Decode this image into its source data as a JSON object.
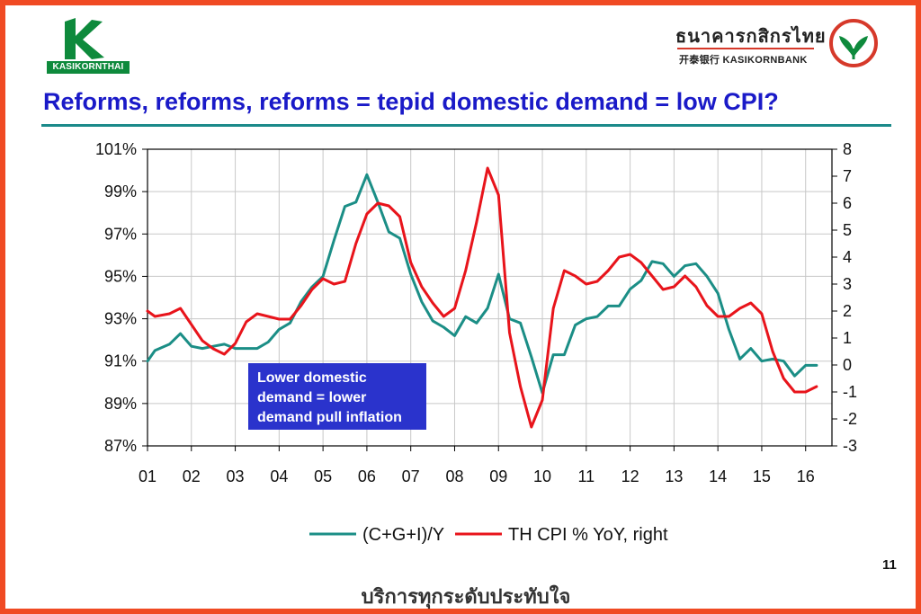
{
  "header": {
    "left_logo_text": "KASIKORNTHAI",
    "right_logo_thai": "ธนาคารกสิกรไทย",
    "right_logo_english": "开泰银行 KASIKORNBANK",
    "title": "Reforms, reforms, reforms = tepid domestic demand = low CPI?"
  },
  "annotation": "Lower domestic demand = lower demand pull inflation",
  "page_number": "11",
  "footer_text": "บริการทุกระดับประทับใจ",
  "colors": {
    "border": "#f04a23",
    "title": "#1a1ac8",
    "series_teal": "#1b8e86",
    "series_red": "#e8141b",
    "annotation_bg": "#2a33cc"
  },
  "chart_data": {
    "type": "line",
    "title": "",
    "x_tick_labels": [
      "01",
      "02",
      "03",
      "04",
      "05",
      "06",
      "07",
      "08",
      "09",
      "10",
      "11",
      "12",
      "13",
      "14",
      "15",
      "16"
    ],
    "xlim": [
      2001,
      2016.6
    ],
    "y_left": {
      "ticks": [
        "87%",
        "89%",
        "91%",
        "93%",
        "95%",
        "97%",
        "99%",
        "101%"
      ],
      "range": [
        87,
        101
      ]
    },
    "y_right": {
      "ticks": [
        "-3",
        "-2",
        "-1",
        "0",
        "1",
        "2",
        "3",
        "4",
        "5",
        "6",
        "7",
        "8"
      ],
      "range": [
        -3,
        8
      ]
    },
    "grid": true,
    "legend_position": "bottom",
    "series": [
      {
        "name": "(C+G+I)/Y",
        "axis": "left",
        "color": "#1b8e86",
        "x": [
          2001.0,
          2001.17,
          2001.5,
          2001.75,
          2002.0,
          2002.25,
          2002.5,
          2002.75,
          2003.0,
          2003.25,
          2003.5,
          2003.75,
          2004.0,
          2004.25,
          2004.5,
          2004.75,
          2005.0,
          2005.25,
          2005.5,
          2005.75,
          2006.0,
          2006.25,
          2006.5,
          2006.75,
          2007.0,
          2007.25,
          2007.5,
          2007.75,
          2008.0,
          2008.25,
          2008.5,
          2008.75,
          2009.0,
          2009.25,
          2009.5,
          2009.75,
          2010.0,
          2010.25,
          2010.5,
          2010.75,
          2011.0,
          2011.25,
          2011.5,
          2011.75,
          2012.0,
          2012.25,
          2012.5,
          2012.75,
          2013.0,
          2013.25,
          2013.5,
          2013.75,
          2014.0,
          2014.25,
          2014.5,
          2014.75,
          2015.0,
          2015.25,
          2015.5,
          2015.75,
          2016.0,
          2016.25
        ],
        "values": [
          91.0,
          91.5,
          91.8,
          92.3,
          91.7,
          91.6,
          91.7,
          91.8,
          91.6,
          91.6,
          91.6,
          91.9,
          92.5,
          92.8,
          93.8,
          94.5,
          95.0,
          96.7,
          98.3,
          98.5,
          99.8,
          98.5,
          97.1,
          96.8,
          95.1,
          93.8,
          92.9,
          92.6,
          92.2,
          93.1,
          92.8,
          93.5,
          95.1,
          93.0,
          92.8,
          91.2,
          89.5,
          91.3,
          91.3,
          92.7,
          93.0,
          93.1,
          93.6,
          93.6,
          94.4,
          94.8,
          95.7,
          95.6,
          95.0,
          95.5,
          95.6,
          95.0,
          94.2,
          92.5,
          91.1,
          91.6,
          91.0,
          91.1,
          91.0,
          90.3,
          90.8,
          90.8
        ]
      },
      {
        "name": "TH CPI % YoY, right",
        "axis": "right",
        "color": "#e8141b",
        "x": [
          2001.0,
          2001.17,
          2001.5,
          2001.75,
          2002.0,
          2002.25,
          2002.5,
          2002.75,
          2003.0,
          2003.25,
          2003.5,
          2003.75,
          2004.0,
          2004.25,
          2004.5,
          2004.75,
          2005.0,
          2005.25,
          2005.5,
          2005.75,
          2006.0,
          2006.25,
          2006.5,
          2006.75,
          2007.0,
          2007.25,
          2007.5,
          2007.75,
          2008.0,
          2008.25,
          2008.5,
          2008.75,
          2009.0,
          2009.25,
          2009.5,
          2009.75,
          2010.0,
          2010.25,
          2010.5,
          2010.75,
          2011.0,
          2011.25,
          2011.5,
          2011.75,
          2012.0,
          2012.25,
          2012.5,
          2012.75,
          2013.0,
          2013.25,
          2013.5,
          2013.75,
          2014.0,
          2014.25,
          2014.5,
          2014.75,
          2015.0,
          2015.25,
          2015.5,
          2015.75,
          2016.0,
          2016.25
        ],
        "values": [
          2.0,
          1.8,
          1.9,
          2.1,
          1.5,
          0.9,
          0.6,
          0.4,
          0.8,
          1.6,
          1.9,
          1.8,
          1.7,
          1.7,
          2.2,
          2.8,
          3.2,
          3.0,
          3.1,
          4.5,
          5.6,
          6.0,
          5.9,
          5.5,
          3.8,
          2.9,
          2.3,
          1.8,
          2.1,
          3.5,
          5.3,
          7.3,
          6.3,
          1.2,
          -0.8,
          -2.3,
          -1.3,
          2.1,
          3.5,
          3.3,
          3.0,
          3.1,
          3.5,
          4.0,
          4.1,
          3.8,
          3.3,
          2.8,
          2.9,
          3.3,
          2.9,
          2.2,
          1.8,
          1.8,
          2.1,
          2.3,
          1.9,
          0.5,
          -0.5,
          -1.0,
          -1.0,
          -0.8
        ]
      }
    ]
  }
}
